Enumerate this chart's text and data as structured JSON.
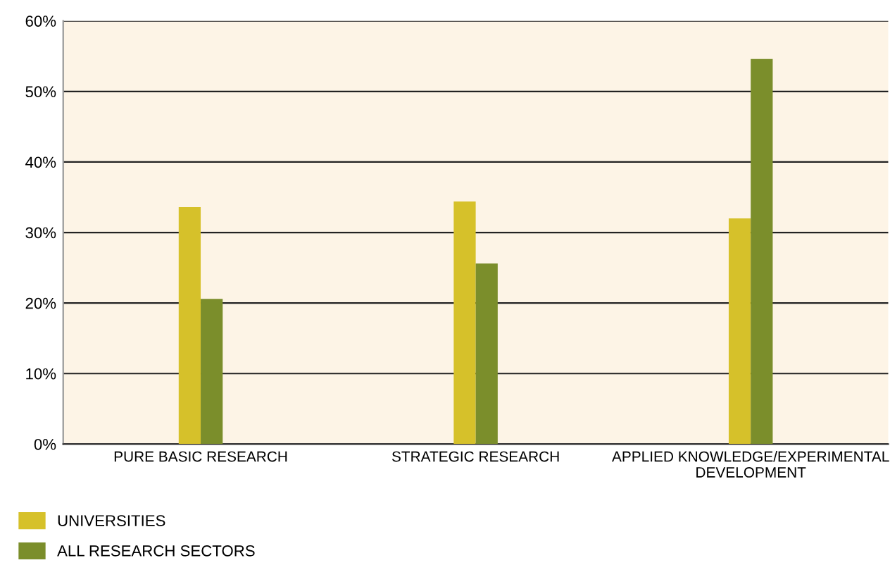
{
  "chart_data": {
    "type": "bar",
    "categories": [
      "PURE BASIC RESEARCH",
      "STRATEGIC RESEARCH",
      "APPLIED KNOWLEDGE/EXPERIMENTAL\nDEVELOPMENT"
    ],
    "series": [
      {
        "name": "UNIVERSITIES",
        "color": "#d6c12a",
        "values": [
          33.6,
          34.4,
          32
        ]
      },
      {
        "name": "ALL RESEARCH SECTORS",
        "color": "#7b8e2b",
        "values": [
          20.6,
          25.6,
          54.6
        ]
      }
    ],
    "ylim": [
      0,
      60
    ],
    "yticks": [
      {
        "value": 0,
        "label": "0%"
      },
      {
        "value": 10,
        "label": "10%"
      },
      {
        "value": 20,
        "label": "20%"
      },
      {
        "value": 30,
        "label": "30%"
      },
      {
        "value": 40,
        "label": "40%"
      },
      {
        "value": 50,
        "label": "50%"
      },
      {
        "value": 60,
        "label": "60%"
      }
    ],
    "grid": "y",
    "legend": "bottom left"
  }
}
